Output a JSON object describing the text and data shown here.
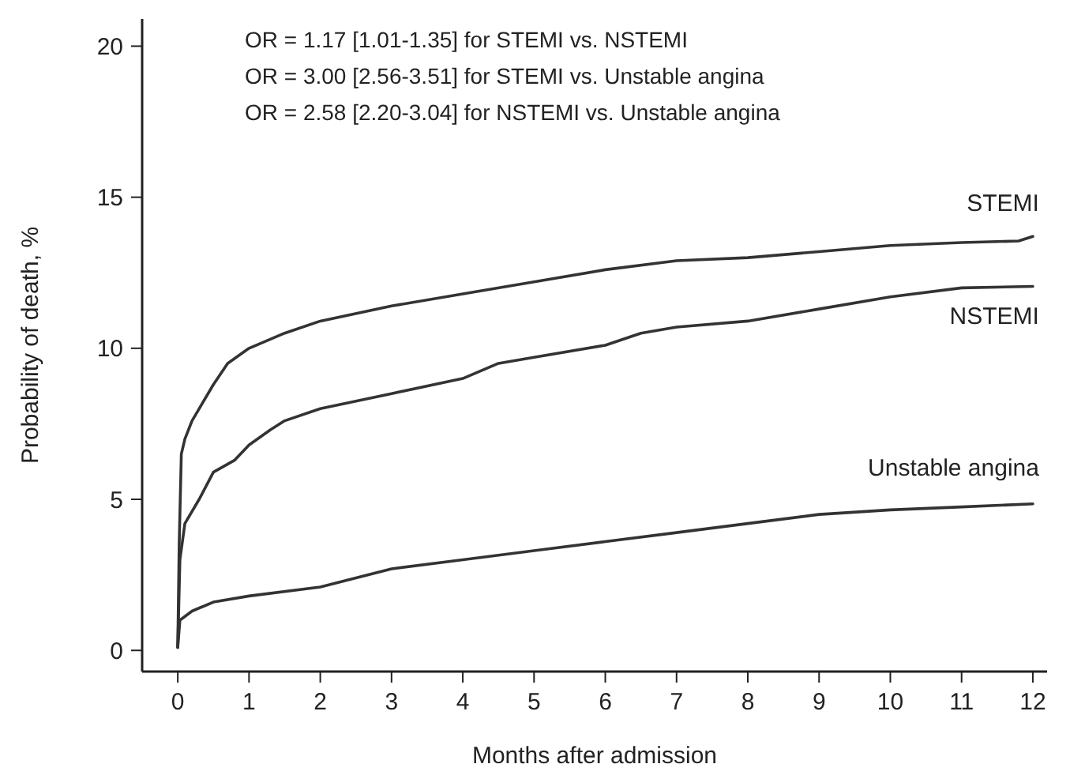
{
  "chart_data": {
    "type": "line",
    "xlabel": "Months after admission",
    "ylabel": "Probability of death, %",
    "xlim": [
      -0.5,
      12.2
    ],
    "ylim": [
      -0.7,
      20.9
    ],
    "xticks": [
      0,
      1,
      2,
      3,
      4,
      5,
      6,
      7,
      8,
      9,
      10,
      11,
      12
    ],
    "yticks": [
      0,
      5,
      10,
      15,
      20
    ],
    "marker": "none",
    "line_style": "solid",
    "annotations": [
      "OR = 1.17 [1.01-1.35] for STEMI vs. NSTEMI",
      "OR = 3.00 [2.56-3.51] for STEMI vs. Unstable angina",
      "OR = 2.58 [2.20-3.04] for NSTEMI vs. Unstable angina"
    ],
    "series": [
      {
        "name": "STEMI",
        "color": "#333333",
        "x": [
          0,
          0.02,
          0.05,
          0.1,
          0.2,
          0.3,
          0.5,
          0.7,
          1,
          1.5,
          2,
          3,
          4,
          5,
          6,
          7,
          8,
          9,
          10,
          11,
          11.8,
          12
        ],
        "values": [
          0.1,
          3.5,
          6.5,
          7,
          7.6,
          8,
          8.8,
          9.5,
          10,
          10.5,
          10.9,
          11.4,
          11.8,
          12.2,
          12.6,
          12.9,
          13,
          13.2,
          13.4,
          13.5,
          13.55,
          13.7
        ]
      },
      {
        "name": "NSTEMI",
        "color": "#333333",
        "x": [
          0,
          0.03,
          0.1,
          0.3,
          0.5,
          0.8,
          1,
          1.3,
          1.5,
          2,
          3,
          4,
          4.5,
          5,
          6,
          6.5,
          7,
          8,
          9,
          10,
          11,
          12
        ],
        "values": [
          0.1,
          3,
          4.2,
          5,
          5.9,
          6.3,
          6.8,
          7.3,
          7.6,
          8,
          8.5,
          9,
          9.5,
          9.7,
          10.1,
          10.5,
          10.7,
          10.9,
          11.3,
          11.7,
          12,
          12.05
        ]
      },
      {
        "name": "Unstable angina",
        "color": "#333333",
        "x": [
          0,
          0.03,
          0.2,
          0.5,
          1,
          2,
          2.5,
          3,
          4,
          5,
          6,
          7,
          8,
          9,
          10,
          11,
          12
        ],
        "values": [
          0.1,
          1,
          1.3,
          1.6,
          1.8,
          2.1,
          2.4,
          2.7,
          3,
          3.3,
          3.6,
          3.9,
          4.2,
          4.5,
          4.65,
          4.75,
          4.85
        ]
      }
    ]
  }
}
